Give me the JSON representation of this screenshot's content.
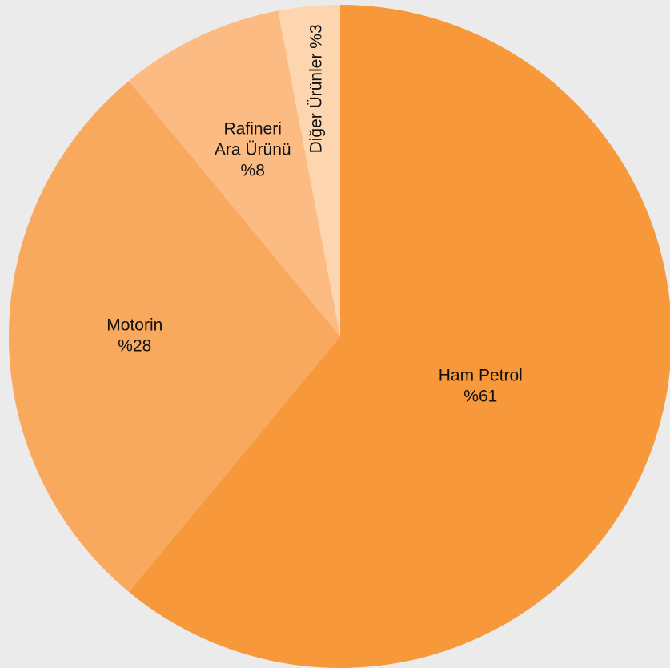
{
  "chart_data": {
    "type": "pie",
    "title": "",
    "slices": [
      {
        "label_lines": [
          "Ham Petrol",
          "%61"
        ],
        "value": 61,
        "color": "#f7983a"
      },
      {
        "label_lines": [
          "Motorin",
          "%28"
        ],
        "value": 28,
        "color": "#f9a95e"
      },
      {
        "label_lines": [
          "Rafineri",
          "Ara Ürünü",
          "%8"
        ],
        "value": 8,
        "color": "#fbbb82"
      },
      {
        "label_lines": [
          "Diğer Ürünler %3"
        ],
        "value": 3,
        "color": "#fdd6b0",
        "label_rotated": true
      }
    ],
    "start_angle_deg": 0,
    "direction": "clockwise",
    "legend": "none",
    "background_color": "#ebebeb"
  }
}
